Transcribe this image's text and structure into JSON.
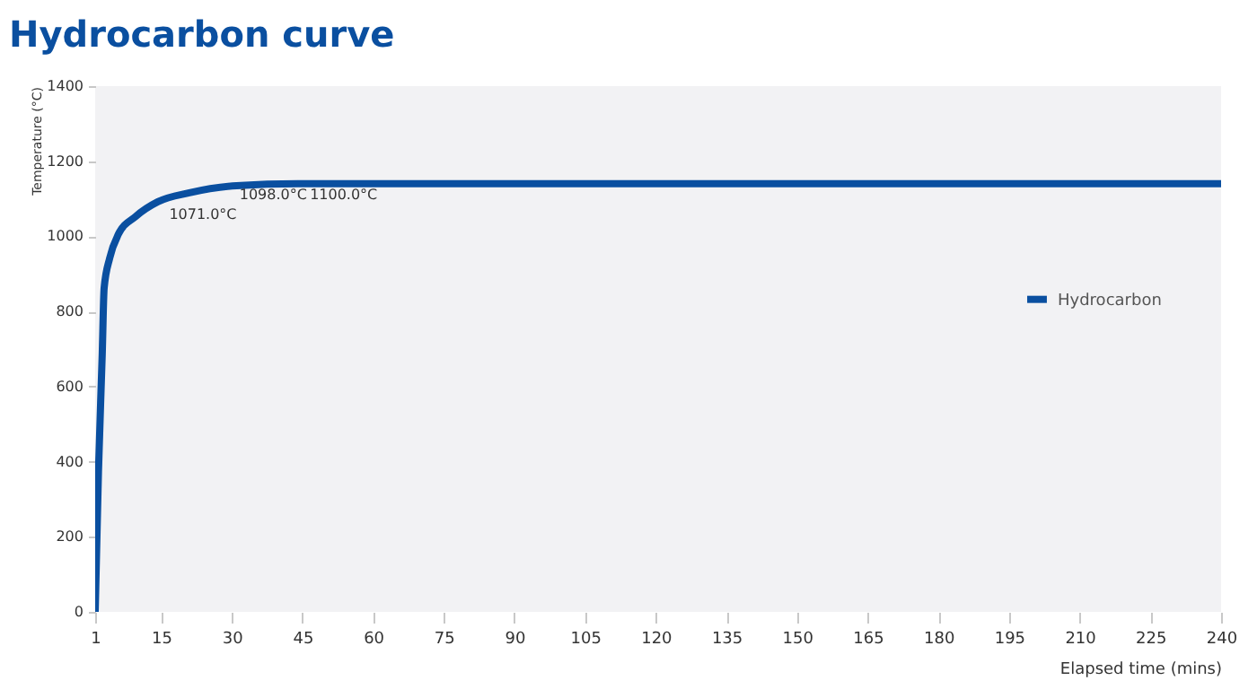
{
  "chart_data": {
    "type": "line",
    "title": "Hydrocarbon curve",
    "xlabel": "Elapsed time (mins)",
    "ylabel": "Temperature (°C)",
    "xlim": [
      1,
      240
    ],
    "xticks": [
      1,
      15,
      30,
      45,
      60,
      75,
      90,
      105,
      120,
      135,
      150,
      165,
      180,
      195,
      210,
      225,
      240
    ],
    "ylim": [
      0,
      1400
    ],
    "yticks": [
      0,
      200,
      400,
      600,
      800,
      1000,
      1200,
      1400
    ],
    "series": [
      {
        "name": "Hydrocarbon",
        "color": "#0a4fa0",
        "x": [
          1,
          1.7,
          2.5,
          2.9,
          4.1,
          5.9,
          9.5,
          14.3,
          21,
          31,
          44,
          240
        ],
        "values": [
          0,
          375,
          687,
          862,
          943,
          1005,
          1052,
          1092,
          1116,
          1135,
          1140,
          1140
        ]
      }
    ],
    "annotations": [
      "1071.0°C",
      "1098.0°C",
      "1100.0°C"
    ],
    "legend": "right",
    "grid": false
  }
}
